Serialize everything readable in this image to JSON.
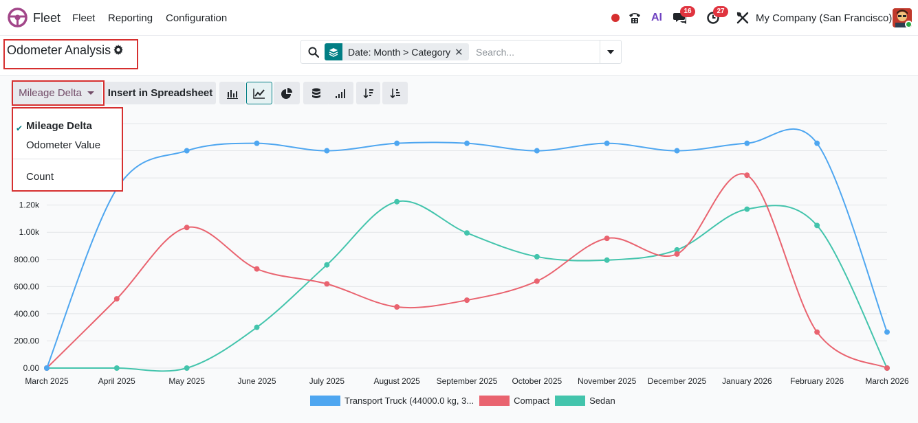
{
  "nav": {
    "app_name": "Fleet",
    "menu": [
      "Fleet",
      "Reporting",
      "Configuration"
    ],
    "ai_label": "AI",
    "messages_count": "16",
    "activities_count": "27",
    "company": "My Company (San Francisco)"
  },
  "control": {
    "title": "Odometer Analysis",
    "facet": "Date: Month > Category",
    "search_placeholder": "Search..."
  },
  "toolbar": {
    "measure_label": "Mileage Delta",
    "insert_label": "Insert in Spreadsheet"
  },
  "measures_menu": {
    "items": [
      "Mileage Delta",
      "Odometer Value",
      "Count"
    ],
    "selected": "Mileage Delta"
  },
  "colors": {
    "accent": "#017e84",
    "brand": "#714b67",
    "highlight": "#d62f2f"
  },
  "chart_data": {
    "type": "line",
    "categories": [
      "March 2025",
      "April 2025",
      "May 2025",
      "June 2025",
      "July 2025",
      "August 2025",
      "September 2025",
      "October 2025",
      "November 2025",
      "December 2025",
      "January 2026",
      "February 2026",
      "March 2026"
    ],
    "series": [
      {
        "name": "Transport Truck (44000.0 kg, 3...",
        "color": "#4ea6f0",
        "values": [
          0,
          1320,
          1600,
          1655,
          1600,
          1655,
          1655,
          1600,
          1655,
          1600,
          1655,
          1655,
          265
        ]
      },
      {
        "name": "Compact",
        "color": "#e9636f",
        "values": [
          0,
          510,
          1035,
          730,
          620,
          450,
          500,
          640,
          955,
          840,
          1420,
          265,
          0
        ]
      },
      {
        "name": "Sedan",
        "color": "#43c4ac",
        "values": [
          0,
          0,
          0,
          300,
          760,
          1225,
          995,
          820,
          795,
          870,
          1170,
          1050,
          0
        ]
      }
    ],
    "y_ticks": [
      "0.00",
      "200.00",
      "400.00",
      "600.00",
      "800.00",
      "1.00k",
      "1.20k"
    ],
    "ylim": [
      0,
      1800
    ],
    "grid": true,
    "legend_position": "bottom"
  }
}
